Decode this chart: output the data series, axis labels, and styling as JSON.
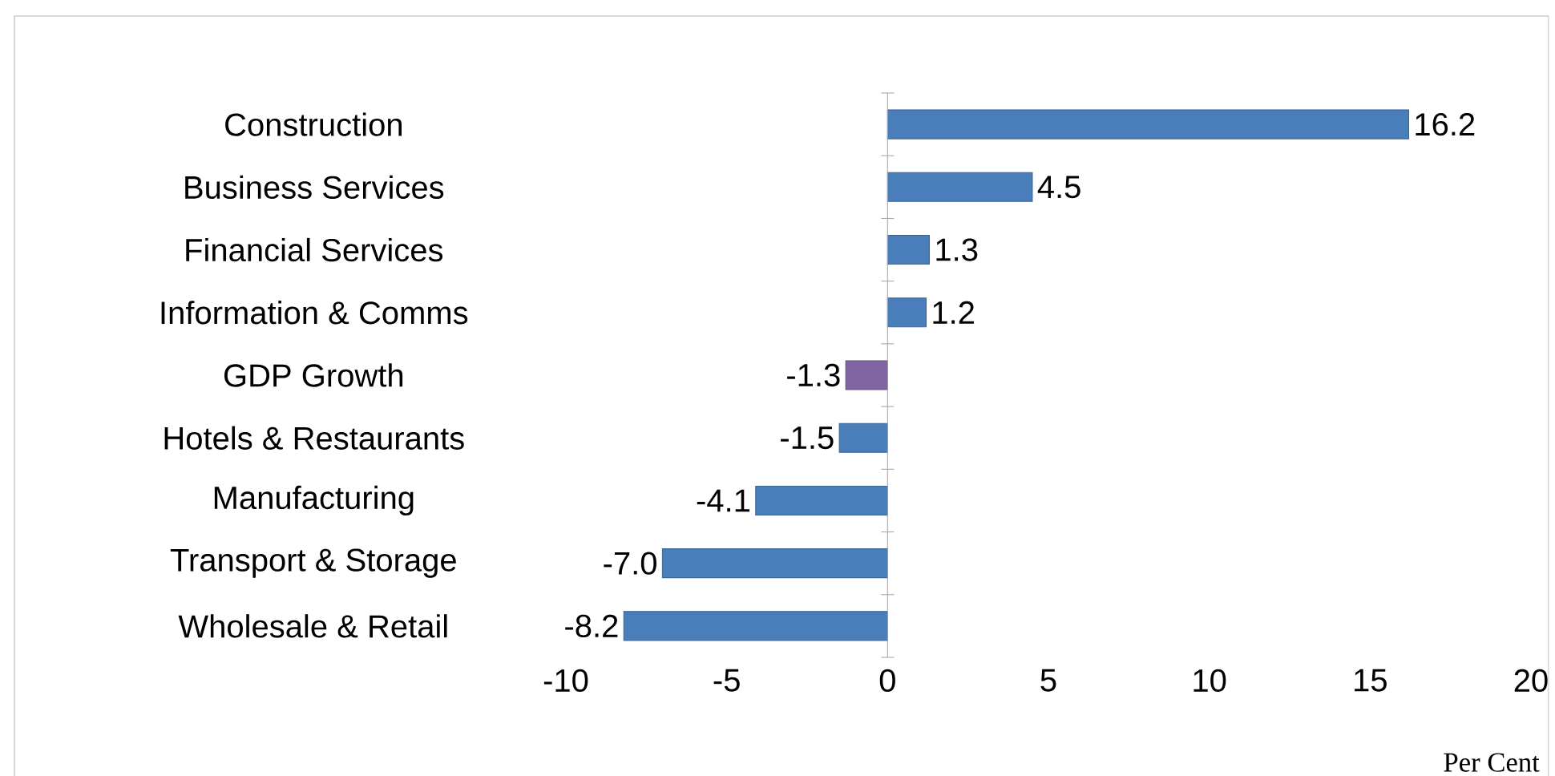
{
  "chart_data": {
    "type": "bar",
    "orientation": "horizontal",
    "xlabel": "Per Cent",
    "categories": [
      "Construction",
      "Business Services",
      "Financial Services",
      "Information & Comms",
      "GDP Growth",
      "Hotels & Restaurants",
      "Manufacturing",
      "Transport & Storage",
      "Wholesale & Retail"
    ],
    "values": [
      16.2,
      4.5,
      1.3,
      1.2,
      -1.3,
      -1.5,
      -4.1,
      -7.0,
      -8.2
    ],
    "colors": [
      "#4a7ebb",
      "#4a7ebb",
      "#4a7ebb",
      "#4a7ebb",
      "#8064a2",
      "#4a7ebb",
      "#4a7ebb",
      "#4a7ebb",
      "#4a7ebb"
    ],
    "xlim": [
      -10,
      20
    ],
    "xticks": [
      -10,
      -5,
      0,
      5,
      10,
      15,
      20
    ],
    "value_labels": [
      "16.2",
      "4.5",
      "1.3",
      "1.2",
      "-1.3",
      "-1.5",
      "-4.1",
      "-7.0",
      "-8.2"
    ]
  }
}
